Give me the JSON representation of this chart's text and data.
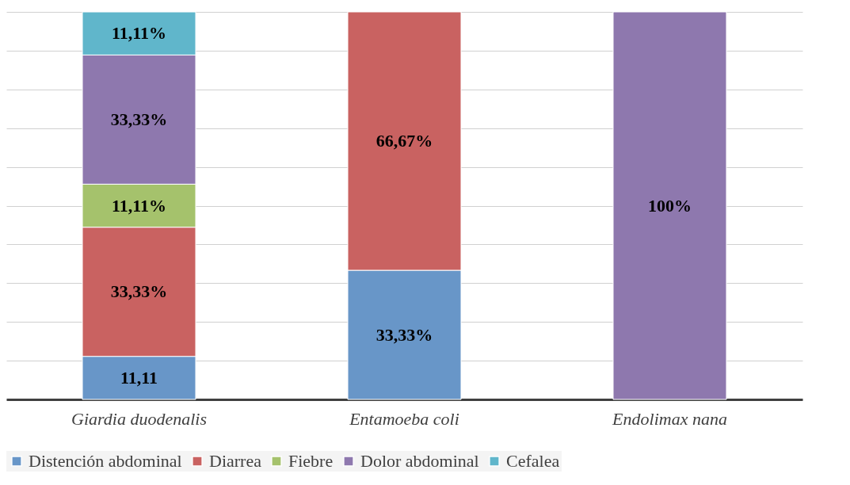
{
  "chart_data": {
    "type": "bar",
    "stacked": true,
    "categories": [
      "Giardia duodenalis",
      "Entamoeba coli",
      "Endolimax nana"
    ],
    "series": [
      {
        "name": "Distención abdominal",
        "color": "#6896c8",
        "values": [
          11.11,
          33.33,
          null
        ],
        "value_labels": [
          "11,11",
          "33,33%",
          null
        ]
      },
      {
        "name": "Diarrea",
        "color": "#c96261",
        "values": [
          33.33,
          66.67,
          null
        ],
        "value_labels": [
          "33,33%",
          "66,67%",
          null
        ]
      },
      {
        "name": "Fiebre",
        "color": "#a5c26c",
        "values": [
          11.11,
          null,
          null
        ],
        "value_labels": [
          "11,11%",
          null,
          null
        ]
      },
      {
        "name": "Dolor abdominal",
        "color": "#8e78ae",
        "values": [
          33.33,
          null,
          100
        ],
        "value_labels": [
          "33,33%",
          null,
          "100%"
        ]
      },
      {
        "name": "Cefalea",
        "color": "#60b6cb",
        "values": [
          11.11,
          null,
          null
        ],
        "value_labels": [
          "11,11%",
          null,
          null
        ]
      }
    ],
    "ylim": [
      0,
      100
    ],
    "yticks": [
      {
        "value": 0,
        "label": null
      },
      {
        "value": 10,
        "label": null
      },
      {
        "value": 20,
        "label": null
      },
      {
        "value": 30,
        "label": null
      },
      {
        "value": 40,
        "label": null
      },
      {
        "value": 50,
        "label": null
      },
      {
        "value": 60,
        "label": null
      },
      {
        "value": 70,
        "label": null
      },
      {
        "value": 80,
        "label": null
      },
      {
        "value": 90,
        "label": null
      },
      {
        "value": 100,
        "label": null
      }
    ],
    "tick_labels": "x",
    "grid": "y",
    "legend": "bottom"
  }
}
